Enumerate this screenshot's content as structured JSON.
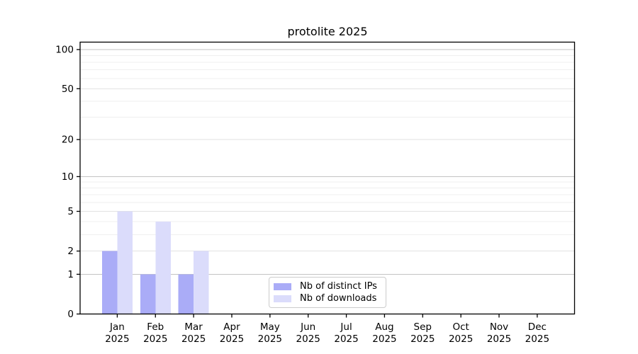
{
  "chart_data": {
    "type": "bar",
    "title": "protolite 2025",
    "categories": [
      "Jan 2025",
      "Feb 2025",
      "Mar 2025",
      "Apr 2025",
      "May 2025",
      "Jun 2025",
      "Jul 2025",
      "Aug 2025",
      "Sep 2025",
      "Oct 2025",
      "Nov 2025",
      "Dec 2025"
    ],
    "series": [
      {
        "name": "Nb of distinct IPs",
        "key": "distinct-ips",
        "color": "#aaacf7",
        "values": [
          2,
          1,
          1,
          0,
          0,
          0,
          0,
          0,
          0,
          0,
          0,
          0
        ]
      },
      {
        "name": "Nb of downloads",
        "key": "downloads",
        "color": "#dbdcfb",
        "values": [
          5,
          4,
          2,
          0,
          0,
          0,
          0,
          0,
          0,
          0,
          0,
          0
        ]
      }
    ],
    "y_axis": {
      "tick_labels": [
        0,
        1,
        2,
        5,
        10,
        20,
        50,
        100
      ],
      "scale": "log10(1+v)",
      "top_value": 100
    },
    "grid": {
      "major_values": [
        1,
        10,
        100
      ],
      "labeled_minor_values": [
        2,
        5,
        20,
        50
      ],
      "minor_values": [
        3,
        4,
        6,
        7,
        8,
        9,
        30,
        40,
        60,
        70,
        80,
        90
      ],
      "major_color": "#c3c3c3",
      "labeled_minor_color": "#e2e2e2",
      "minor_color": "#efefef"
    },
    "legend_position": "inside-bottom-center",
    "axis_color": "#000000",
    "text_color": "#000000"
  }
}
